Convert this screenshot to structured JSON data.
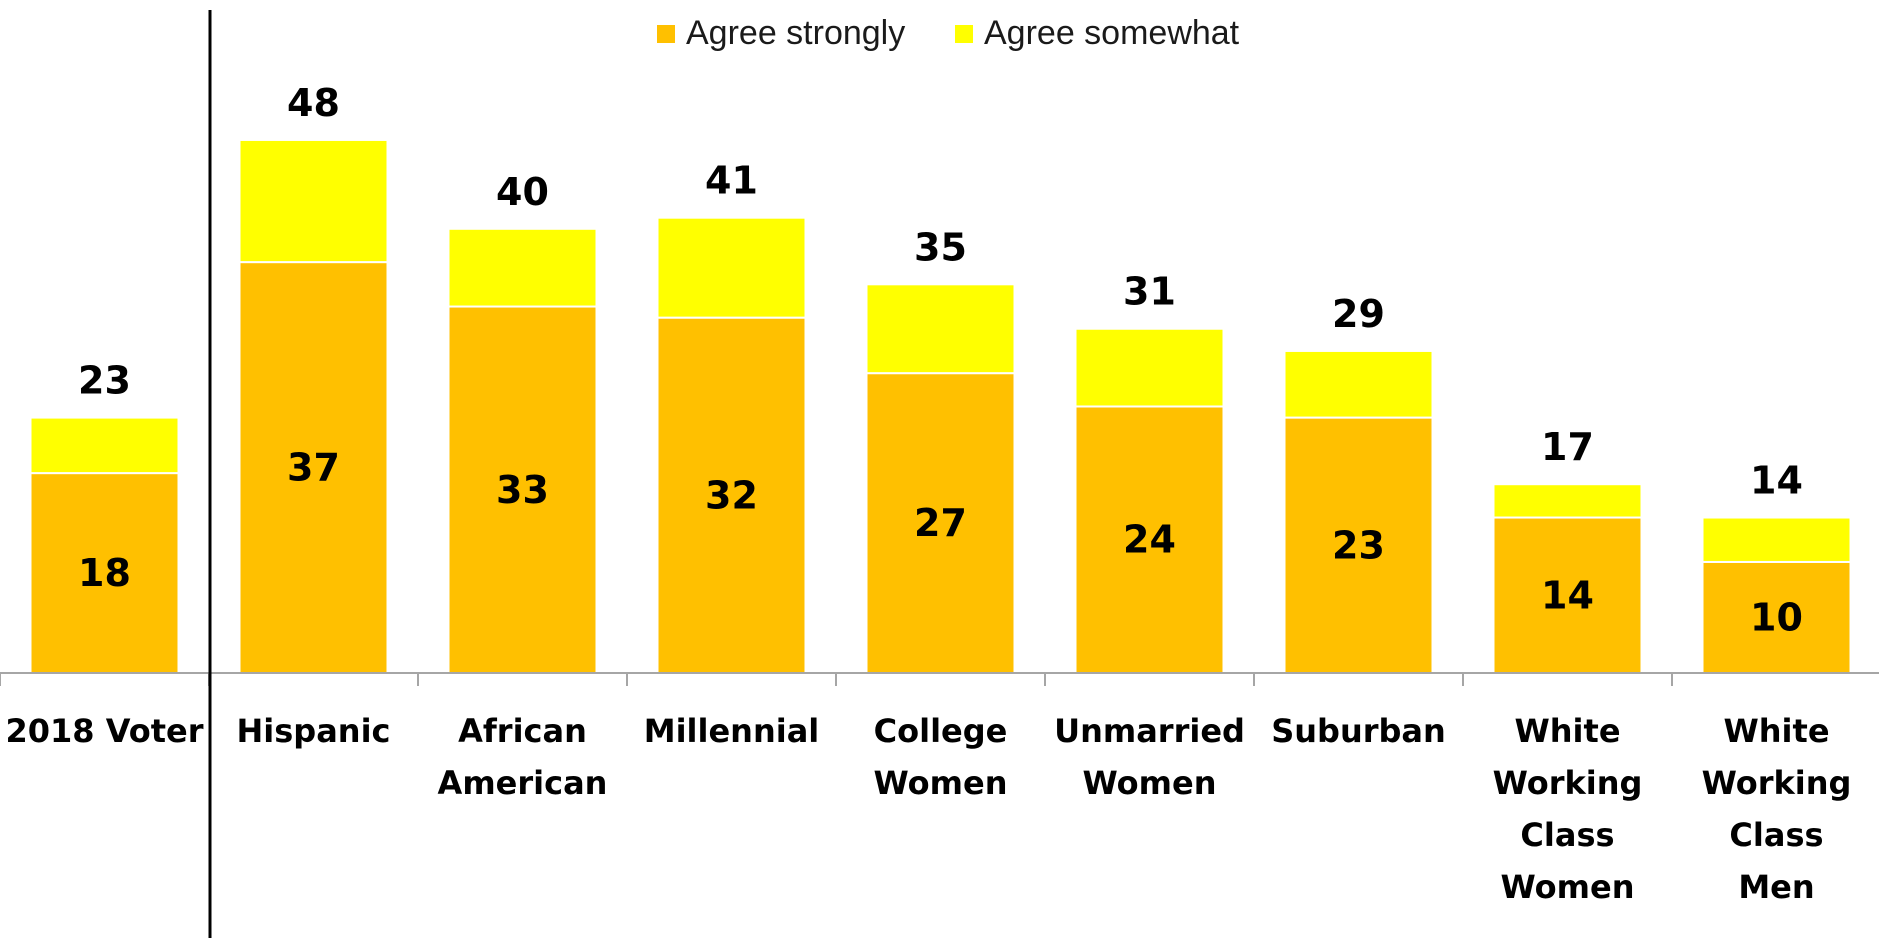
{
  "chart_data": {
    "type": "bar",
    "stacked": true,
    "categories": [
      [
        "2018 Voter"
      ],
      [
        "Hispanic"
      ],
      [
        "African",
        "American"
      ],
      [
        "Millennial"
      ],
      [
        "College",
        "Women"
      ],
      [
        "Unmarried",
        "Women"
      ],
      [
        "Suburban"
      ],
      [
        "White",
        "Working",
        "Class",
        "Women"
      ],
      [
        "White",
        "Working",
        "Class",
        "Men"
      ]
    ],
    "series": [
      {
        "name": "Agree strongly",
        "color": "#FFC000",
        "values": [
          18,
          37,
          33,
          32,
          27,
          24,
          23,
          14,
          10
        ]
      },
      {
        "name": "Agree somewhat",
        "color": "#FFFF00",
        "values": [
          5,
          11,
          7,
          9,
          8,
          7,
          6,
          3,
          4
        ]
      }
    ],
    "totals": [
      23,
      48,
      40,
      41,
      35,
      31,
      29,
      17,
      14
    ],
    "ylim": [
      0,
      57
    ],
    "grid": false,
    "legend": "top-center",
    "separator_after_first_category": true
  }
}
